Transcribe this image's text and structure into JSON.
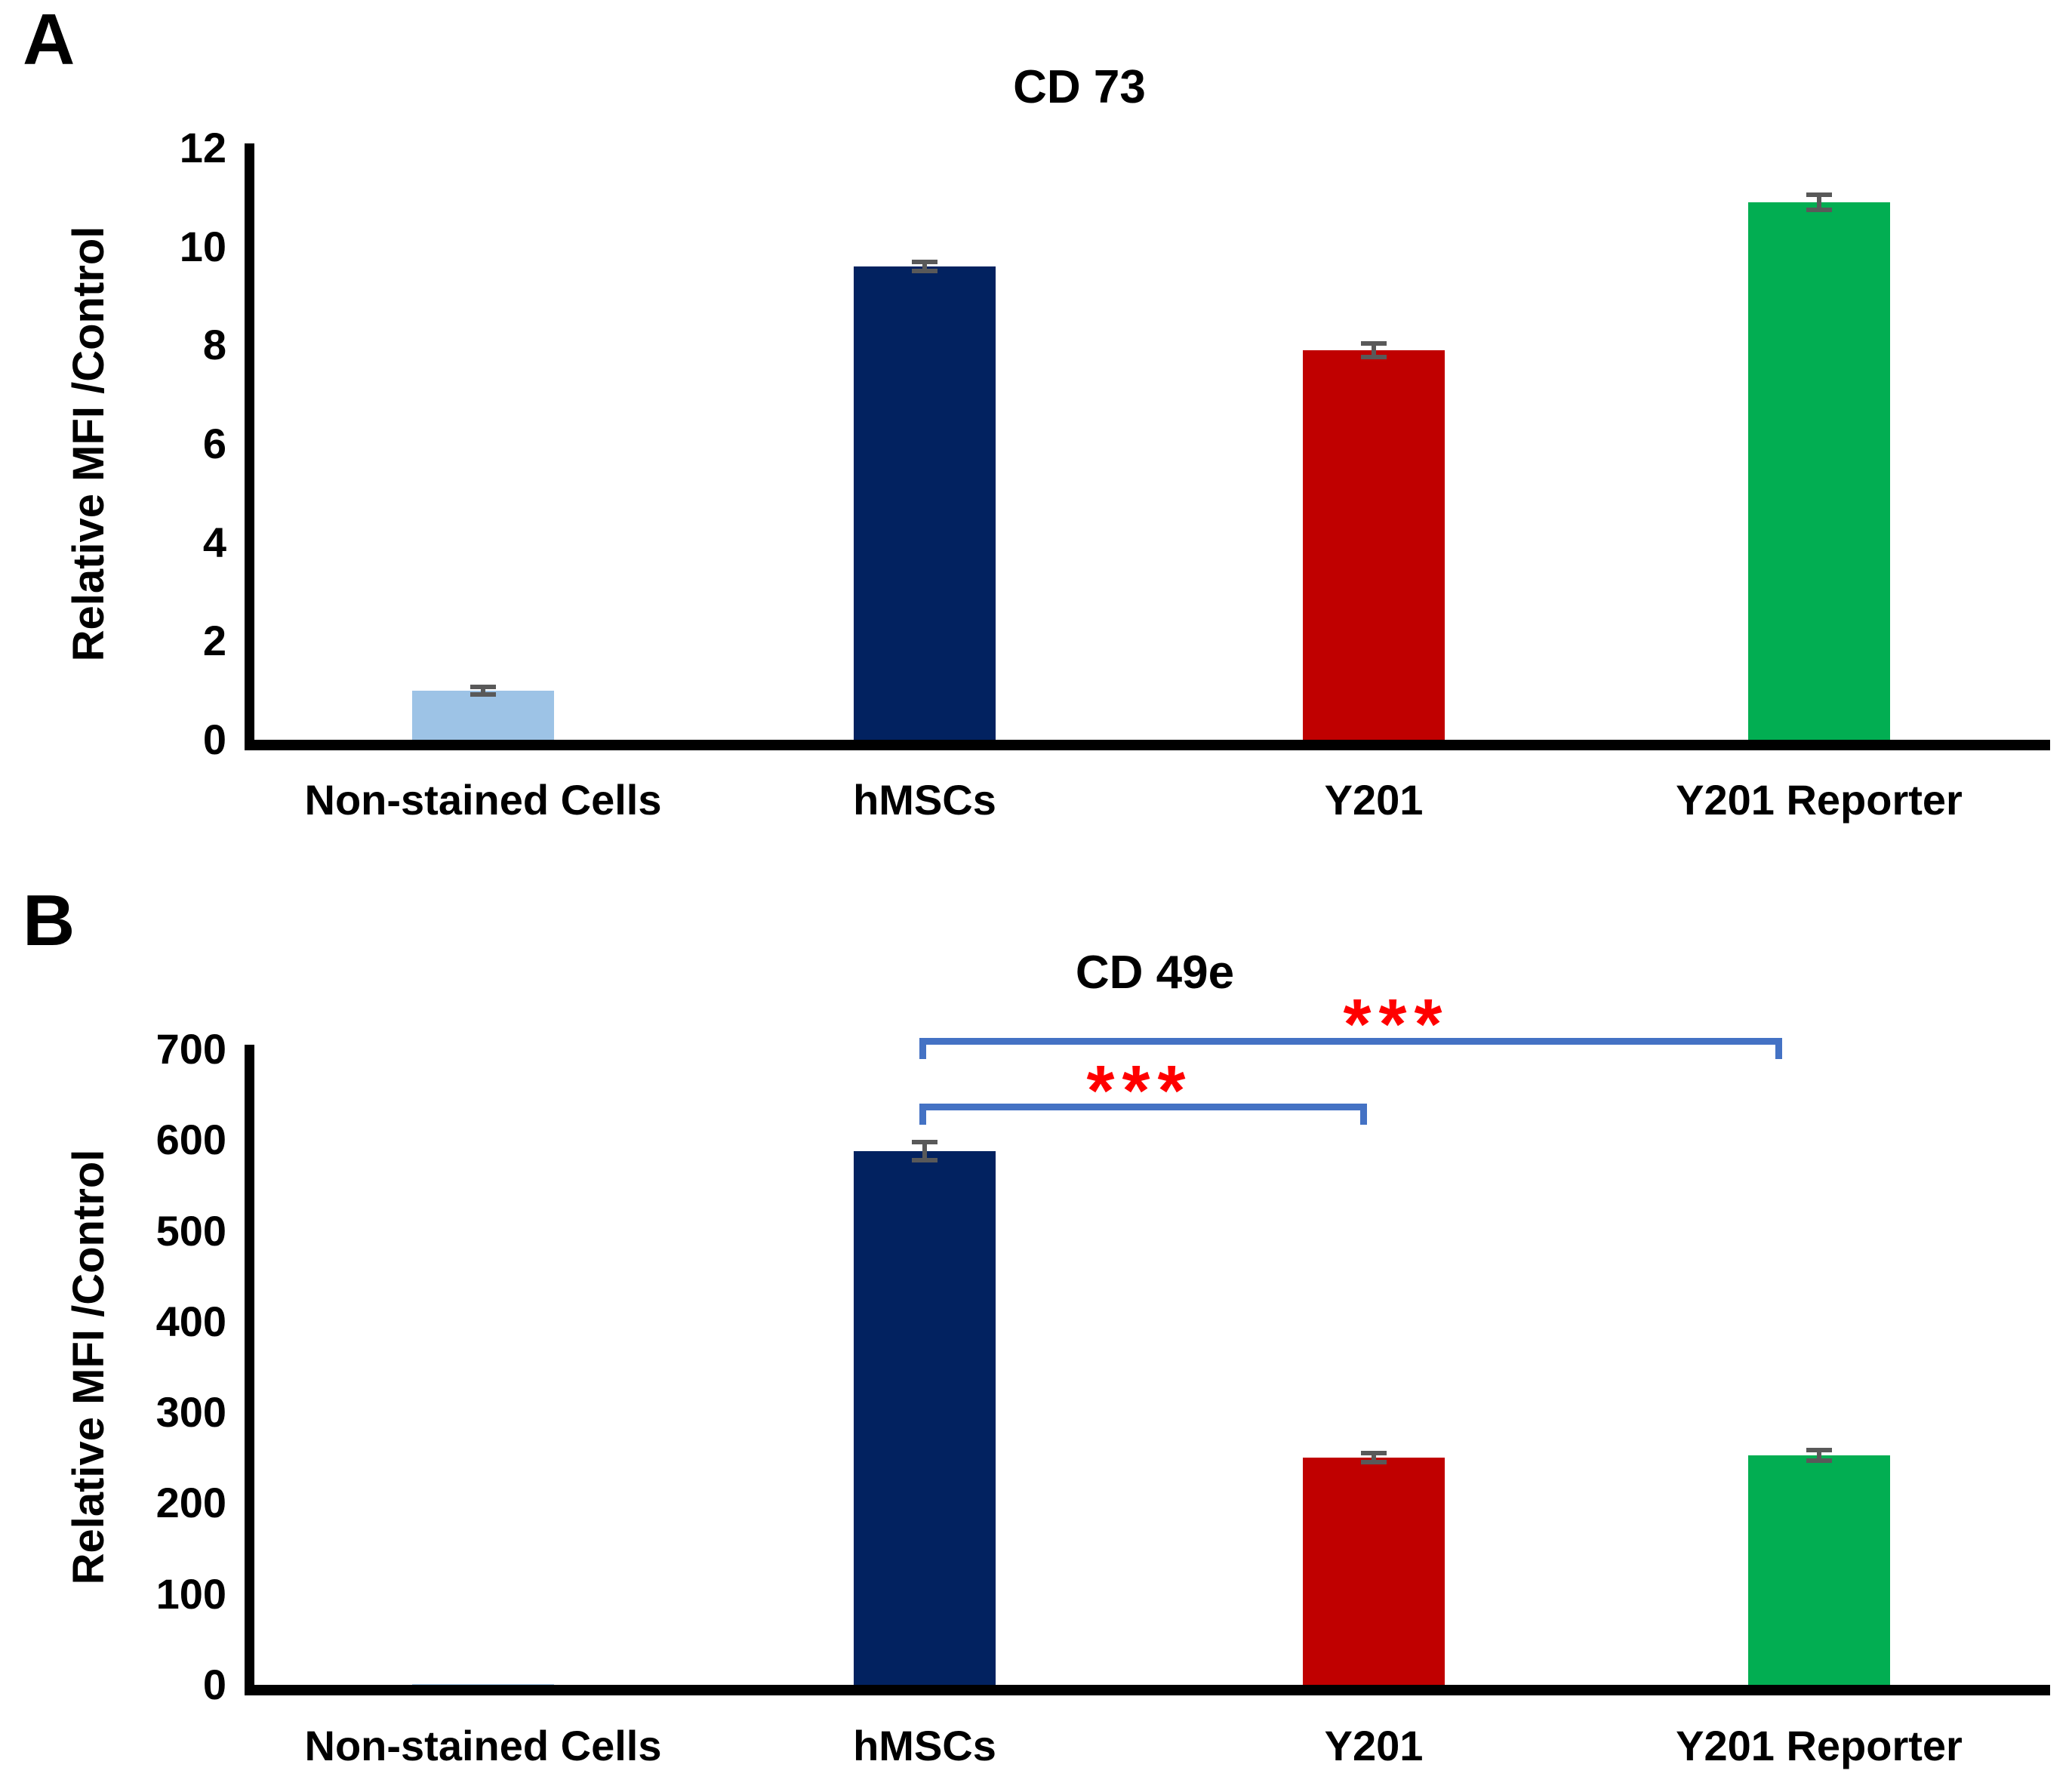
{
  "colors": {
    "light_blue": "#9DC3E6",
    "navy": "#022260",
    "red": "#C00000",
    "green": "#02AE52",
    "bracket_blue": "#4472C4",
    "significance_red": "#FF0000",
    "error_bar_gray": "#595959",
    "axis_black": "#000000"
  },
  "chart_data": [
    {
      "panel_label": "A",
      "type": "bar",
      "title": "CD 73",
      "xlabel": "",
      "ylabel": "Relative MFI /Control",
      "categories": [
        "Non-stained Cells",
        "hMSCs",
        "Y201",
        "Y201 Reporter"
      ],
      "values": [
        1.0,
        9.6,
        7.9,
        10.9
      ],
      "errors": [
        0.05,
        0.06,
        0.1,
        0.12
      ],
      "bar_colors": [
        "#9DC3E6",
        "#022260",
        "#C00000",
        "#02AE52"
      ],
      "ylim": [
        0,
        12
      ],
      "yticks": [
        0,
        2,
        4,
        6,
        8,
        10,
        12
      ],
      "grid": false,
      "legend": "none"
    },
    {
      "panel_label": "B",
      "type": "bar",
      "title": "CD 49e",
      "xlabel": "",
      "ylabel": "Relative MFI /Control",
      "categories": [
        "Non-stained Cells",
        "hMSCs",
        "Y201",
        "Y201 Reporter"
      ],
      "values": [
        1,
        588,
        250,
        253
      ],
      "errors": [
        0,
        8,
        3,
        4
      ],
      "bar_colors": [
        "#9DC3E6",
        "#022260",
        "#C00000",
        "#02AE52"
      ],
      "ylim": [
        0,
        700
      ],
      "yticks": [
        0,
        100,
        200,
        300,
        400,
        500,
        600,
        700
      ],
      "grid": false,
      "legend": "none",
      "significance": [
        {
          "groups": [
            "hMSCs",
            "Y201"
          ],
          "label": "***"
        },
        {
          "groups": [
            "hMSCs",
            "Y201 Reporter"
          ],
          "label": "***"
        }
      ]
    }
  ]
}
